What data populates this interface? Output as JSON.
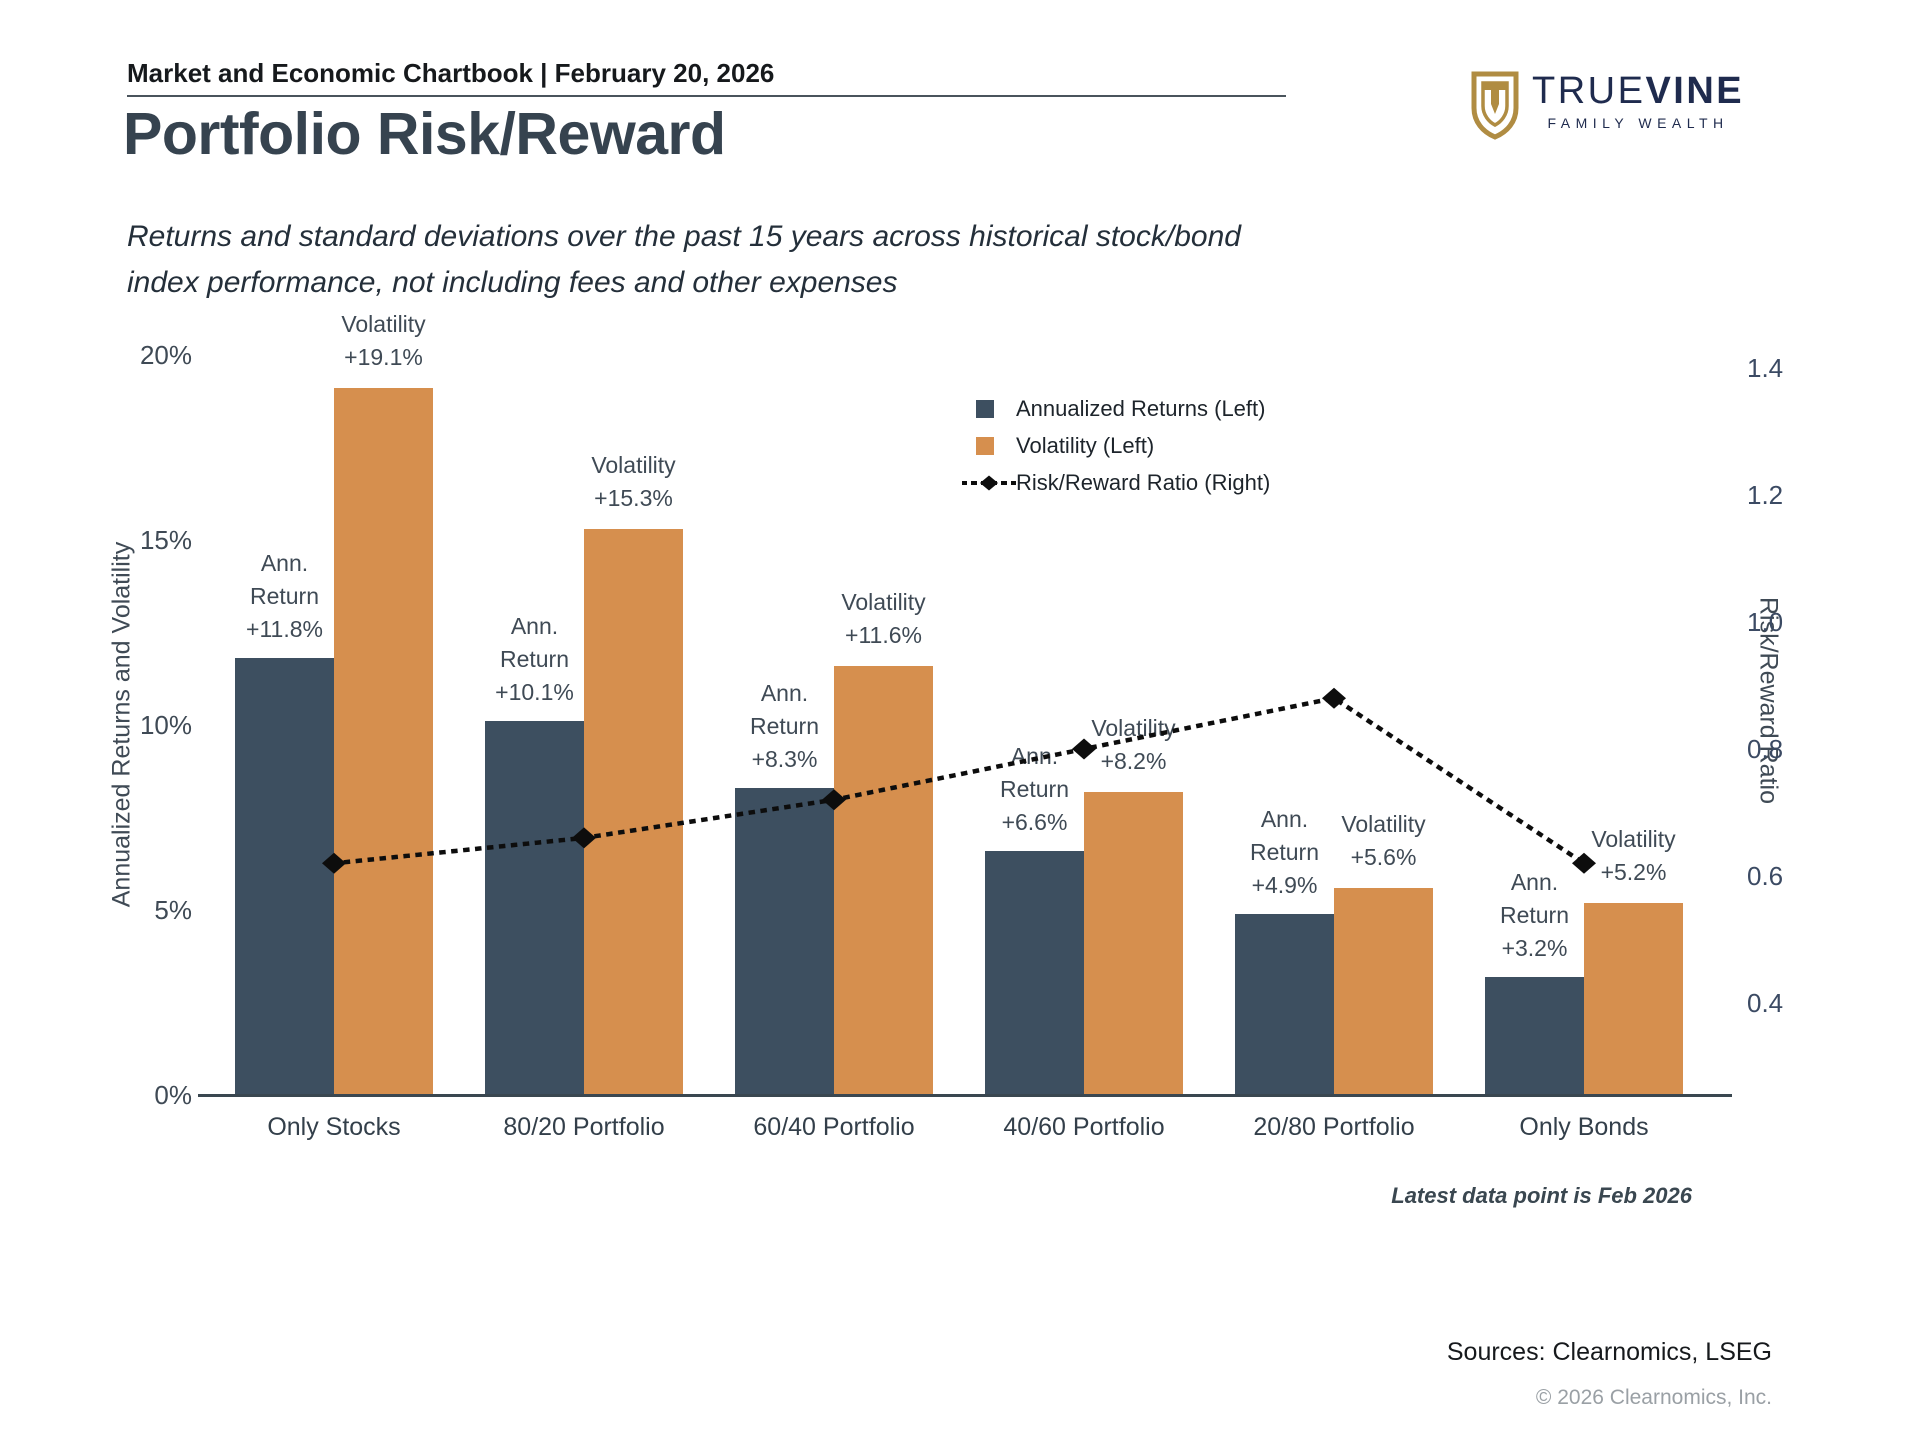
{
  "header": {
    "chartbook_line": "Market and Economic Chartbook | February 20, 2026"
  },
  "brand": {
    "name_regular": "TRUE",
    "name_bold": "VINE",
    "tagline": "FAMILY WEALTH",
    "gold": "#b08c42",
    "navy": "#1f2b4e"
  },
  "title": "Portfolio Risk/Reward",
  "subtitle_line1": "Returns and standard deviations over the past 15 years across historical stock/bond",
  "subtitle_line2": "index performance, not including fees and other expenses",
  "chart_data": {
    "type": "bar+line",
    "grid": false,
    "legend_position": "top-right-inside",
    "categories": [
      "Only Stocks",
      "80/20 Portfolio",
      "60/40 Portfolio",
      "40/60 Portfolio",
      "20/80 Portfolio",
      "Only Bonds"
    ],
    "series": [
      {
        "name": "Annualized Returns (Left)",
        "type": "bar",
        "axis": "left",
        "color": "#3d4f60",
        "values": [
          11.8,
          10.1,
          8.3,
          6.6,
          4.9,
          3.2
        ],
        "point_labels": [
          [
            "Ann.",
            "Return",
            "+11.8%"
          ],
          [
            "Ann.",
            "Return",
            "+10.1%"
          ],
          [
            "Ann.",
            "Return",
            "+8.3%"
          ],
          [
            "Ann.",
            "Return",
            "+6.6%"
          ],
          [
            "Ann.",
            "Return",
            "+4.9%"
          ],
          [
            "Ann.",
            "Return",
            "+3.2%"
          ]
        ]
      },
      {
        "name": "Volatility (Left)",
        "type": "bar",
        "axis": "left",
        "color": "#d68f4e",
        "values": [
          19.1,
          15.3,
          11.6,
          8.2,
          5.6,
          5.2
        ],
        "point_labels": [
          [
            "Volatility",
            "+19.1%"
          ],
          [
            "Volatility",
            "+15.3%"
          ],
          [
            "Volatility",
            "+11.6%"
          ],
          [
            "Volatility",
            "+8.2%"
          ],
          [
            "Volatility",
            "+5.6%"
          ],
          [
            "Volatility",
            "+5.2%"
          ]
        ]
      },
      {
        "name": "Risk/Reward Ratio (Right)",
        "type": "line",
        "axis": "right",
        "line_style": "dotted",
        "marker": "diamond",
        "color": "#0d0d0d",
        "values": [
          0.62,
          0.66,
          0.72,
          0.8,
          0.88,
          0.62
        ]
      }
    ],
    "left_axis": {
      "title": "Annualized Returns and Volatility",
      "ticks": [
        "20%",
        "15%",
        "10%",
        "5%",
        "0%"
      ],
      "tick_values": [
        20,
        15,
        10,
        5,
        0
      ],
      "min": 0,
      "max": 20
    },
    "right_axis": {
      "title": "Risk/Reward Ratio",
      "ticks": [
        "1.4",
        "1.2",
        "1.0",
        "0.8",
        "0.6",
        "0.4"
      ],
      "tick_values": [
        1.4,
        1.2,
        1.0,
        0.8,
        0.6,
        0.4
      ]
    }
  },
  "footnote": "Latest data point is Feb 2026",
  "footer": {
    "sources": "Sources: Clearnomics, LSEG",
    "copyright": "© 2026 Clearnomics, Inc."
  }
}
